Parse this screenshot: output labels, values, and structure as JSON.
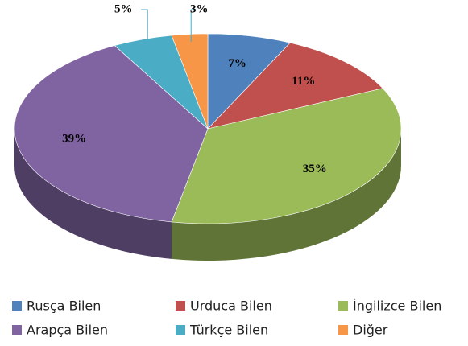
{
  "chart_data": {
    "type": "pie",
    "categories": [
      "Rusça Bilen",
      "Urduca Bilen",
      "İngilizce Bilen",
      "Arapça Bilen",
      "Türkçe Bilen",
      "Diğer"
    ],
    "values": [
      7,
      11,
      35,
      39,
      5,
      3
    ],
    "value_labels": [
      "7%",
      "11%",
      "35%",
      "39%",
      "5%",
      "3%"
    ],
    "colors": [
      "#4f81bd",
      "#c0504d",
      "#9bbb59",
      "#8064a2",
      "#4bacc6",
      "#f79646"
    ],
    "legend": "bottom"
  }
}
